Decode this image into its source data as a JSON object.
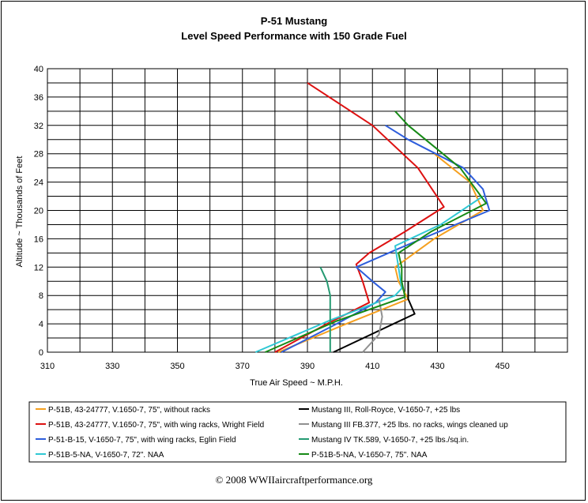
{
  "chart_data": {
    "type": "line",
    "title": "P-51 Mustang",
    "subtitle": "Level Speed Performance with 150 Grade Fuel",
    "xlabel": "True Air Speed ~ M.P.H.",
    "ylabel": "Altitude ~ Thousands of Feet",
    "xlim": [
      310,
      470
    ],
    "ylim": [
      0,
      40
    ],
    "x_ticks": [
      310,
      330,
      350,
      370,
      390,
      410,
      430,
      450
    ],
    "y_ticks": [
      0,
      4,
      8,
      12,
      16,
      20,
      24,
      28,
      32,
      36,
      40
    ],
    "grid": true,
    "legend_position": "bottom",
    "copyright": "© 2008 WWIIaircraftperformance.org",
    "series": [
      {
        "name": "P-51B, 43-24777, V.1650-7, 75\", without racks",
        "color": "#f5a020",
        "points": [
          [
            381,
            0
          ],
          [
            402,
            4
          ],
          [
            421,
            7.5
          ],
          [
            418,
            10
          ],
          [
            417,
            12
          ],
          [
            429,
            16
          ],
          [
            444,
            20
          ],
          [
            440,
            24
          ],
          [
            429,
            28
          ]
        ]
      },
      {
        "name": "P-51B, 43-24777, V.1650-7, 75\", with wing racks, Wright Field",
        "color": "#dd1111",
        "points": [
          [
            380,
            0
          ],
          [
            396,
            4
          ],
          [
            409,
            7
          ],
          [
            407,
            10
          ],
          [
            405,
            12.4
          ],
          [
            409,
            14
          ],
          [
            420,
            17
          ],
          [
            432,
            20.5
          ],
          [
            424,
            26
          ],
          [
            410,
            32
          ],
          [
            390,
            38
          ]
        ]
      },
      {
        "name": "P-51-B-15, V-1650-7, 75\", with wing racks, Eglin Field",
        "color": "#2e5edc",
        "points": [
          [
            382,
            0
          ],
          [
            399,
            4
          ],
          [
            411,
            7
          ],
          [
            414,
            8.5
          ],
          [
            410,
            10
          ],
          [
            405,
            12
          ],
          [
            420,
            15
          ],
          [
            446,
            20
          ],
          [
            444,
            23
          ],
          [
            438,
            26
          ],
          [
            421,
            30
          ],
          [
            414,
            32
          ]
        ]
      },
      {
        "name": "P-51B-5-NA, V-1650-7, 72\". NAA",
        "color": "#30c8d4",
        "points": [
          [
            374,
            0
          ],
          [
            397,
            4.5
          ],
          [
            417,
            8
          ],
          [
            419,
            9
          ],
          [
            418,
            12
          ],
          [
            417,
            15
          ],
          [
            431,
            18
          ],
          [
            444,
            22
          ]
        ]
      },
      {
        "name": "Mustang III, Roll-Royce, V-1650-7, +25 lbs",
        "color": "#000000",
        "points": [
          [
            398,
            0
          ],
          [
            423,
            5.4
          ],
          [
            421,
            7.5
          ],
          [
            421,
            10
          ]
        ]
      },
      {
        "name": "Mustang III  FB.377, +25 lbs. no racks, wings cleaned up",
        "color": "#909090",
        "points": [
          [
            407,
            0
          ],
          [
            412,
            2.5
          ],
          [
            413,
            5
          ],
          [
            412,
            7.5
          ]
        ]
      },
      {
        "name": "Mustang IV TK.589, V-1650-7, +25 lbs./sq.in.",
        "color": "#259a72",
        "points": [
          [
            397,
            0
          ],
          [
            397,
            4
          ],
          [
            397,
            8
          ],
          [
            396,
            10
          ],
          [
            394,
            12
          ]
        ]
      },
      {
        "name": "P-51B-5-NA, V-1650-7, 75\". NAA",
        "color": "#168a16",
        "points": [
          [
            377,
            0
          ],
          [
            399,
            4.4
          ],
          [
            420,
            7.8
          ],
          [
            419,
            10
          ],
          [
            419,
            12
          ],
          [
            418,
            14
          ],
          [
            428,
            17
          ],
          [
            445,
            21
          ],
          [
            437,
            26
          ],
          [
            421,
            32
          ],
          [
            417,
            34
          ]
        ]
      }
    ]
  }
}
